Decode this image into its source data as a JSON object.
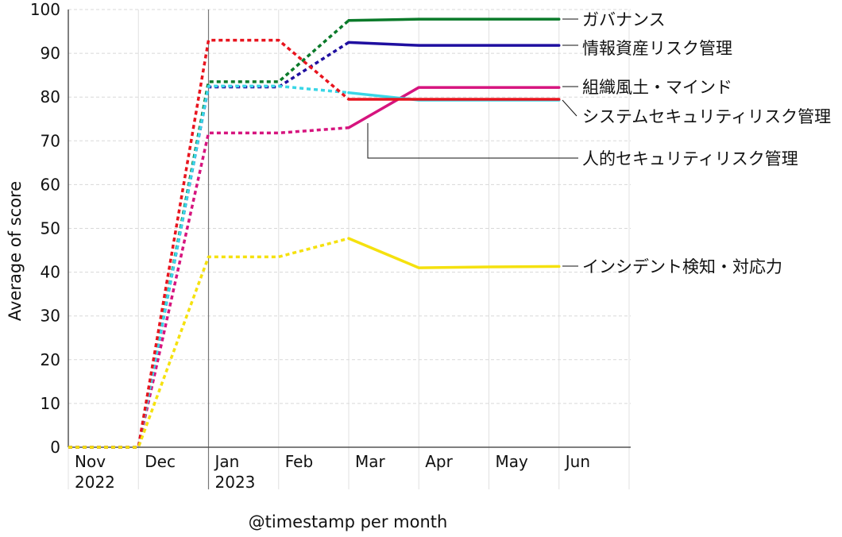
{
  "chart_data": {
    "type": "line",
    "xlabel": "@timestamp per month",
    "ylabel": "Average of score",
    "ylim": [
      0,
      100
    ],
    "yticks": [
      0,
      10,
      20,
      30,
      40,
      50,
      60,
      70,
      80,
      90,
      100
    ],
    "categories": [
      "Nov 2022",
      "Dec",
      "Jan 2023",
      "Feb",
      "Mar",
      "Apr",
      "May",
      "Jun"
    ],
    "category_lines": [
      [
        "Nov",
        "2022"
      ],
      [
        "Dec"
      ],
      [
        "Jan",
        "2023"
      ],
      [
        "Feb"
      ],
      [
        "Mar"
      ],
      [
        "Apr"
      ],
      [
        "May"
      ],
      [
        "Jun"
      ]
    ],
    "series": [
      {
        "name": "ガバナンス",
        "color": "#0a7a2a",
        "values": [
          0,
          0,
          83.5,
          83.5,
          97.5,
          97.8,
          97.8,
          97.8
        ],
        "dashed_until": 4
      },
      {
        "name": "情報資産リスク管理",
        "color": "#1f0fa0",
        "values": [
          0,
          0,
          82.3,
          82.3,
          92.5,
          91.8,
          91.8,
          91.8
        ],
        "dashed_until": 4
      },
      {
        "name": "組織風土・マインド",
        "color": "#d6147e",
        "values": [
          0,
          0,
          71.8,
          71.8,
          73.0,
          82.2,
          82.2,
          82.2
        ],
        "dashed_until": 4
      },
      {
        "name": "システムセキュリティリスク管理",
        "color": "#39d6e6",
        "values": [
          0,
          0,
          82.5,
          82.5,
          81.0,
          79.3,
          79.3,
          79.3
        ],
        "dashed_until": 4
      },
      {
        "name": "人的セキュリティリスク管理",
        "color": "#e8141e",
        "values": [
          0,
          0,
          93.0,
          93.0,
          79.5,
          79.5,
          79.5,
          79.5
        ],
        "dashed_until": 4
      },
      {
        "name": "インシデント検知・対応力",
        "color": "#f5e10e",
        "values": [
          0,
          0,
          43.5,
          43.5,
          47.7,
          41.0,
          41.2,
          41.3
        ],
        "dashed_until": 4
      }
    ]
  }
}
